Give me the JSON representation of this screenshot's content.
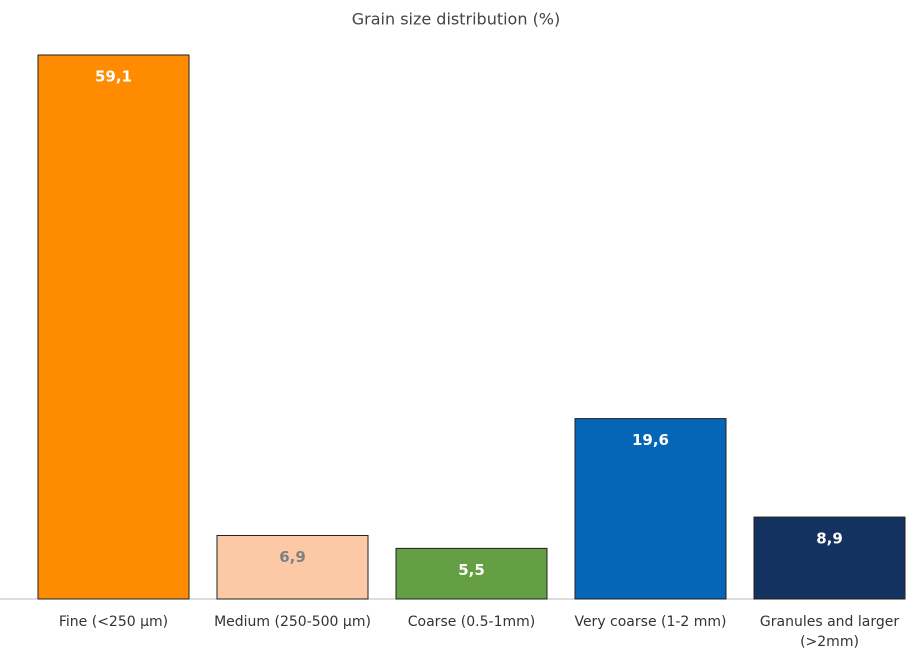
{
  "chart_data": {
    "type": "bar",
    "title": "Grain size distribution (%)",
    "categories": [
      "Fine (<250 µm)",
      "Medium (250-500 µm)",
      "Coarse (0.5-1mm)",
      "Very coarse (1-2 mm)",
      "Granules and larger (>2mm)"
    ],
    "values": [
      59.1,
      6.9,
      5.5,
      19.6,
      8.9
    ],
    "value_labels": [
      "59,1",
      "6,9",
      "5,5",
      "19,6",
      "8,9"
    ],
    "colors": [
      "#ff8c00",
      "#fbc9a6",
      "#64a043",
      "#0566b8",
      "#14325f"
    ],
    "label_colors": [
      "#ffffff",
      "#808080",
      "#ffffff",
      "#ffffff",
      "#ffffff"
    ]
  }
}
